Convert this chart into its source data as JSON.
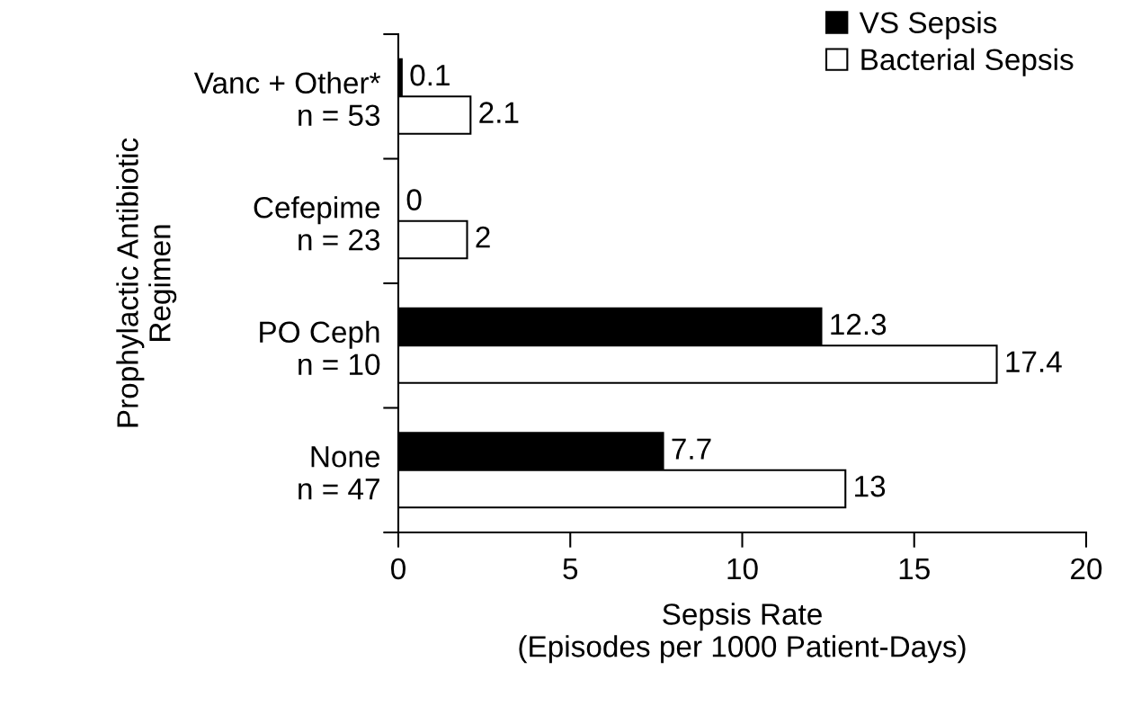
{
  "chart_data": {
    "type": "bar",
    "orientation": "horizontal",
    "categories": [
      "Vanc + Other*\nn = 53",
      "Cefepime\nn = 23",
      "PO Ceph\nn = 10",
      "None\nn = 47"
    ],
    "series": [
      {
        "name": "VS Sepsis",
        "color": "#000000",
        "values": [
          0.1,
          0,
          12.3,
          7.7
        ]
      },
      {
        "name": "Bacterial Sepsis",
        "color": "#ffffff",
        "values": [
          2.1,
          2,
          17.4,
          13
        ]
      }
    ],
    "xlabel": "Sepsis Rate\n(Episodes per 1000 Patient-Days)",
    "ylabel": "Prophylactic Antibiotic\nRegimen",
    "xlim": [
      0,
      20
    ],
    "xticks": [
      0,
      5,
      10,
      15,
      20
    ],
    "data_labels": true,
    "grid": false,
    "legend": "top right"
  }
}
